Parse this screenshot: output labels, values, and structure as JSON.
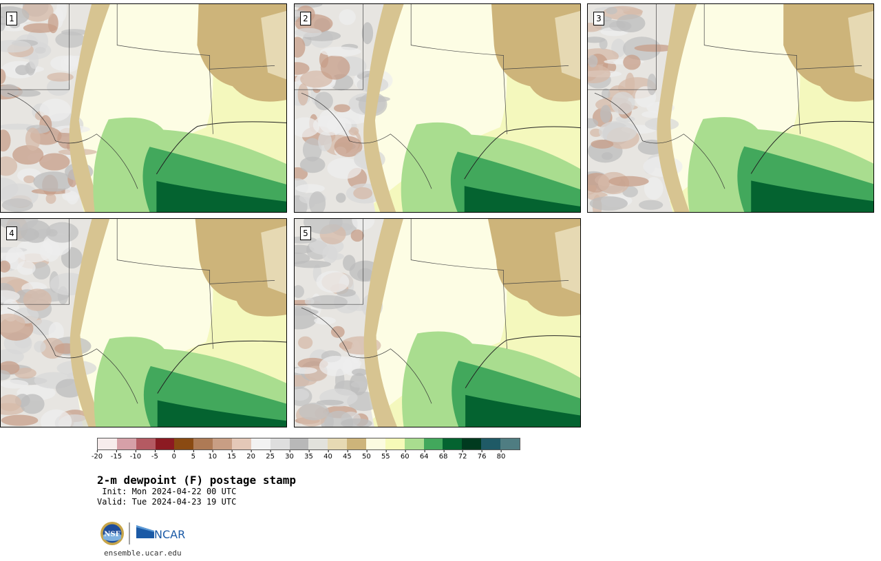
{
  "panels": [
    {
      "label": "1"
    },
    {
      "label": "2"
    },
    {
      "label": "3"
    },
    {
      "label": "4"
    },
    {
      "label": "5"
    }
  ],
  "colorbar": {
    "colors": [
      "#f7ecec",
      "#d6a0a8",
      "#b45a62",
      "#8c1a22",
      "#8a4a12",
      "#ae7a55",
      "#c89e84",
      "#e4c8b8",
      "#f2f2f2",
      "#dedede",
      "#b8b8b8",
      "#e2e2dc",
      "#e6d9b3",
      "#cdb47a",
      "#fcfbe0",
      "#f6fab8",
      "#a9dd8f",
      "#42a85c",
      "#046330",
      "#003a1f",
      "#1f5a66",
      "#4f7d82"
    ],
    "ticks": [
      "-20",
      "-15",
      "-10",
      "-5",
      "0",
      "5",
      "10",
      "15",
      "20",
      "25",
      "30",
      "35",
      "40",
      "45",
      "50",
      "55",
      "60",
      "64",
      "68",
      "72",
      "76",
      "80"
    ]
  },
  "title": "2-m dewpoint (F) postage stamp",
  "init": " Init: Mon 2024-04-22 00 UTC",
  "valid": "Valid: Tue 2024-04-23 19 UTC",
  "logos": {
    "nsf": "NSF",
    "ncar": "NCAR"
  },
  "site": "ensemble.ucar.edu"
}
